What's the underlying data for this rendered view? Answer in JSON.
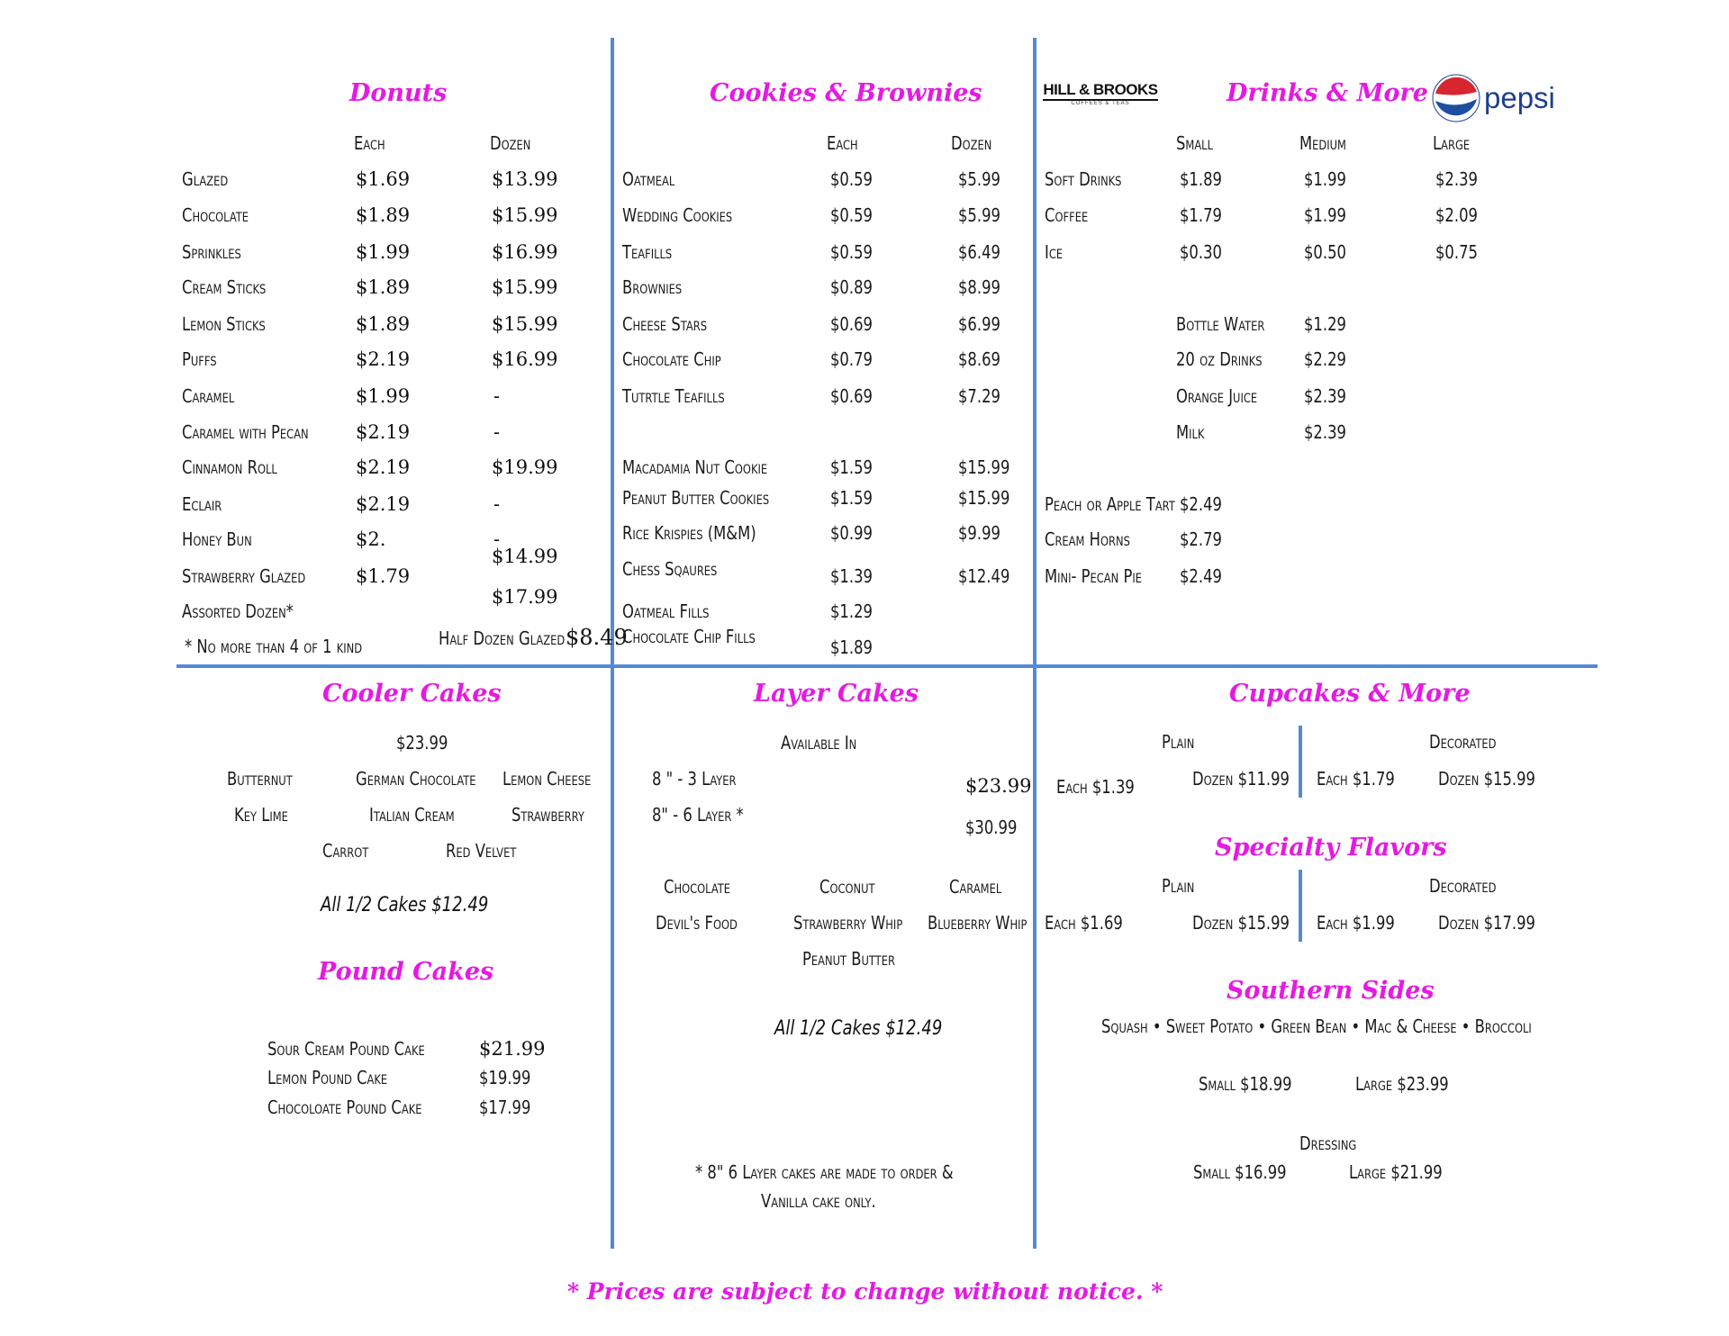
{
  "colors": {
    "heading": "#e41be1",
    "divider": "#5589d6"
  },
  "donuts": {
    "title": "Donuts",
    "col_each": "Each",
    "col_dozen": "Dozen",
    "items": [
      {
        "name": "Glazed",
        "each": "$1.69",
        "dozen": "$13.99"
      },
      {
        "name": "Chocolate",
        "each": "$1.89",
        "dozen": "$15.99"
      },
      {
        "name": "Sprinkles",
        "each": "$1.99",
        "dozen": "$16.99"
      },
      {
        "name": "Cream Sticks",
        "each": "$1.89",
        "dozen": "$15.99"
      },
      {
        "name": "Lemon Sticks",
        "each": "$1.89",
        "dozen": "$15.99"
      },
      {
        "name": "Puffs",
        "each": "$2.19",
        "dozen": "$16.99"
      },
      {
        "name": "Caramel",
        "each": "$1.99",
        "dozen": "-"
      },
      {
        "name": "Caramel with Pecan",
        "each": "$2.19",
        "dozen": "-"
      },
      {
        "name": "Cinnamon Roll",
        "each": "$2.19",
        "dozen": "$19.99"
      },
      {
        "name": "Eclair",
        "each": "$2.19",
        "dozen": "-"
      },
      {
        "name": "Honey Bun",
        "each": "$2.",
        "dozen": "-"
      },
      {
        "name": "Strawberry Glazed",
        "each": "$1.79",
        "dozen": "$14.99"
      },
      {
        "name": "Assorted Dozen*",
        "each": "",
        "dozen": "$17.99"
      }
    ],
    "note": "* No more than 4 of 1 kind",
    "half_dozen_label": "Half Dozen Glazed",
    "half_dozen_price": "$8.49"
  },
  "cookies": {
    "title": "Cookies & Brownies",
    "col_each": "Each",
    "col_dozen": "Dozen",
    "items": [
      {
        "name": "Oatmeal",
        "each": "$0.59",
        "dozen": "$5.99"
      },
      {
        "name": "Wedding Cookies",
        "each": "$0.59",
        "dozen": "$5.99"
      },
      {
        "name": "Teafills",
        "each": "$0.59",
        "dozen": "$6.49"
      },
      {
        "name": "Brownies",
        "each": "$0.89",
        "dozen": "$8.99"
      },
      {
        "name": "Cheese Stars",
        "each": "$0.69",
        "dozen": "$6.99"
      },
      {
        "name": "Chocolate Chip",
        "each": "$0.79",
        "dozen": "$8.69"
      },
      {
        "name": "Tutrtle Teafills",
        "each": "$0.69",
        "dozen": "$7.29"
      },
      {
        "name": "Macadamia Nut Cookie",
        "each": "$1.59",
        "dozen": "$15.99"
      },
      {
        "name": "Peanut Butter Cookies",
        "each": "$1.59",
        "dozen": "$15.99"
      },
      {
        "name": "Rice Krispies (M&M)",
        "each": "$0.99",
        "dozen": "$9.99"
      },
      {
        "name": "Chess Sqaures",
        "each": "$1.39",
        "dozen": "$12.49"
      },
      {
        "name": "Oatmeal Fills",
        "each": "$1.29",
        "dozen": ""
      },
      {
        "name": "Chocolate Chip Fills",
        "each": "$1.89",
        "dozen": ""
      }
    ]
  },
  "drinks": {
    "title": "Drinks & More",
    "logo_hill_brooks": "HILL & BROOKS",
    "logo_hill_brooks_sub": "COFFEES & TEAS",
    "logo_pepsi": "pepsi",
    "col_small": "Small",
    "col_medium": "Medium",
    "col_large": "Large",
    "sized": [
      {
        "name": "Soft Drinks",
        "small": "$1.89",
        "medium": "$1.99",
        "large": "$2.39"
      },
      {
        "name": "Coffee",
        "small": "$1.79",
        "medium": "$1.99",
        "large": "$2.09"
      },
      {
        "name": "Ice",
        "small": "$0.30",
        "medium": "$0.50",
        "large": "$0.75"
      }
    ],
    "other": [
      {
        "name": "Bottle Water",
        "price": "$1.29"
      },
      {
        "name": "20 oz Drinks",
        "price": "$2.29"
      },
      {
        "name": "Orange Juice",
        "price": "$2.39"
      },
      {
        "name": "Milk",
        "price": "$2.39"
      }
    ],
    "extras": [
      {
        "name": "Peach or Apple Tart",
        "price": "$2.49"
      },
      {
        "name": "Cream Horns",
        "price": "$2.79"
      },
      {
        "name": "Mini- Pecan Pie",
        "price": "$2.49"
      }
    ]
  },
  "cooler": {
    "title": "Cooler Cakes",
    "price": "$23.99",
    "flavors": [
      "Butternut",
      "German Chocolate",
      "Lemon Cheese",
      "Key Lime",
      "Italian Cream",
      "Strawberry",
      "Carrot",
      "Red Velvet"
    ],
    "half": "All 1/2 Cakes $12.49"
  },
  "pound": {
    "title": "Pound Cakes",
    "items": [
      {
        "name": "Sour Cream Pound Cake",
        "price": "$21.99"
      },
      {
        "name": "Lemon Pound Cake",
        "price": "$19.99"
      },
      {
        "name": "Chocoloate Pound Cake",
        "price": "$17.99"
      }
    ]
  },
  "layer": {
    "title": "Layer Cakes",
    "available": "Available In",
    "sizes": [
      {
        "name": "8 \" -  3 Layer",
        "price": "$23.99"
      },
      {
        "name": "8\" - 6 Layer *",
        "price": "$30.99"
      }
    ],
    "flavors": [
      "Chocolate",
      "Coconut",
      "Caramel",
      "Devil's Food",
      "Strawberry Whip",
      "Blueberry Whip",
      "Peanut Butter"
    ],
    "half": "All 1/2 Cakes $12.49",
    "note1": "* 8\" 6 Layer cakes are made to order &",
    "note2": "Vanilla cake only."
  },
  "cupcakes": {
    "title": "Cupcakes & More",
    "plain": "Plain",
    "decorated": "Decorated",
    "plain_each": "Each $1.39",
    "plain_dozen": "Dozen $11.99",
    "dec_each": "Each $1.79",
    "dec_dozen": "Dozen $15.99"
  },
  "specialty": {
    "title": "Specialty Flavors",
    "plain": "Plain",
    "decorated": "Decorated",
    "plain_each": "Each $1.69",
    "plain_dozen": "Dozen $15.99",
    "dec_each": "Each $1.99",
    "dec_dozen": "Dozen $17.99"
  },
  "sides": {
    "title": "Southern Sides",
    "list": "Squash  •  Sweet Potato • Green Bean • Mac & Cheese  • Broccoli",
    "small": "Small $18.99",
    "large": "Large $23.99",
    "dressing": "Dressing",
    "dressing_small": "Small $16.99",
    "dressing_large": "Large $21.99"
  },
  "footer": "* Prices are subject to change without notice. *"
}
